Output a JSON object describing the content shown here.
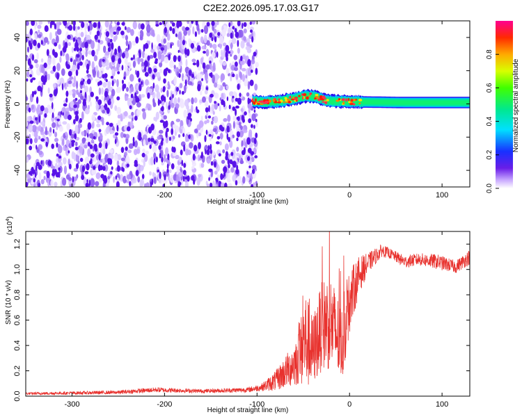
{
  "title": "C2E2.2026.095.17.03.G17",
  "colors": {
    "noise": "#5a14e8",
    "snr_line": "#e8322e",
    "axis": "#000000"
  },
  "chart_data": [
    {
      "type": "heatmap",
      "name": "spectrogram",
      "xlabel": "Height of straight line (km)",
      "ylabel": "Frequency (Hz)",
      "xlim": [
        -350,
        130
      ],
      "ylim": [
        -50,
        50
      ],
      "xticks": [
        -300,
        -200,
        -100,
        0,
        100
      ],
      "xtick_labels": [
        "-300",
        "-200",
        "-100",
        "0",
        "100"
      ],
      "yticks": [
        -40,
        -20,
        0,
        20,
        40
      ],
      "ytick_labels": [
        "-40",
        "-20",
        "0",
        "20",
        "40"
      ],
      "noise_region_x": [
        -350,
        -100
      ],
      "signal": {
        "x_start": -105,
        "x_end": 130,
        "center_freq": [
          {
            "x": -105,
            "f": 1.5
          },
          {
            "x": -90,
            "f": 1.0
          },
          {
            "x": -75,
            "f": 1.8
          },
          {
            "x": -60,
            "f": 3.0
          },
          {
            "x": -45,
            "f": 5.0
          },
          {
            "x": -35,
            "f": 4.0
          },
          {
            "x": -25,
            "f": 2.0
          },
          {
            "x": -10,
            "f": 1.5
          },
          {
            "x": 10,
            "f": 1.2
          },
          {
            "x": 60,
            "f": 0.8
          },
          {
            "x": 130,
            "f": 0.8
          }
        ],
        "band_width_hz": 6
      },
      "colorbar": {
        "label": "Normalized spectral amplitude",
        "ticks": [
          0.0,
          0.2,
          0.4,
          0.6,
          0.8
        ],
        "tick_labels": [
          "0.0",
          "0.2",
          "0.4",
          "0.6",
          "0.8"
        ],
        "range": [
          0,
          1
        ]
      }
    },
    {
      "type": "line",
      "name": "snr",
      "xlabel": "Height of straight line (km)",
      "ylabel": "SNR (10 * v/v)",
      "yscale_label_base": "(x10",
      "yscale_label_exp": "4",
      "yscale_label_close": ")",
      "xlim": [
        -350,
        130
      ],
      "ylim": [
        0,
        1.3
      ],
      "xticks": [
        -300,
        -200,
        -100,
        0,
        100
      ],
      "xtick_labels": [
        "-300",
        "-200",
        "-100",
        "0",
        "100"
      ],
      "yticks": [
        0.0,
        0.2,
        0.4,
        0.6,
        0.8,
        1.0,
        1.2
      ],
      "ytick_labels": [
        "0.0",
        "0.2",
        "0.4",
        "0.6",
        "0.8",
        "1.0",
        "1.2"
      ],
      "envelope": [
        {
          "x": -350,
          "base": 0.02,
          "amp": 0.01
        },
        {
          "x": -250,
          "base": 0.03,
          "amp": 0.015
        },
        {
          "x": -210,
          "base": 0.05,
          "amp": 0.02
        },
        {
          "x": -160,
          "base": 0.04,
          "amp": 0.015
        },
        {
          "x": -110,
          "base": 0.05,
          "amp": 0.02
        },
        {
          "x": -95,
          "base": 0.07,
          "amp": 0.03
        },
        {
          "x": -80,
          "base": 0.12,
          "amp": 0.08
        },
        {
          "x": -65,
          "base": 0.22,
          "amp": 0.15
        },
        {
          "x": -55,
          "base": 0.3,
          "amp": 0.22
        },
        {
          "x": -48,
          "base": 0.45,
          "amp": 0.4
        },
        {
          "x": -40,
          "base": 0.35,
          "amp": 0.28
        },
        {
          "x": -30,
          "base": 0.55,
          "amp": 0.35
        },
        {
          "x": -22,
          "base": 0.6,
          "amp": 0.4
        },
        {
          "x": -15,
          "base": 0.5,
          "amp": 0.35
        },
        {
          "x": -8,
          "base": 0.4,
          "amp": 0.3
        },
        {
          "x": 0,
          "base": 0.75,
          "amp": 0.25
        },
        {
          "x": 10,
          "base": 0.95,
          "amp": 0.15
        },
        {
          "x": 20,
          "base": 1.05,
          "amp": 0.08
        },
        {
          "x": 35,
          "base": 1.15,
          "amp": 0.05
        },
        {
          "x": 45,
          "base": 1.12,
          "amp": 0.04
        },
        {
          "x": 60,
          "base": 1.06,
          "amp": 0.05
        },
        {
          "x": 75,
          "base": 1.08,
          "amp": 0.05
        },
        {
          "x": 95,
          "base": 1.06,
          "amp": 0.06
        },
        {
          "x": 115,
          "base": 1.02,
          "amp": 0.05
        },
        {
          "x": 130,
          "base": 1.1,
          "amp": 0.06
        }
      ]
    }
  ]
}
